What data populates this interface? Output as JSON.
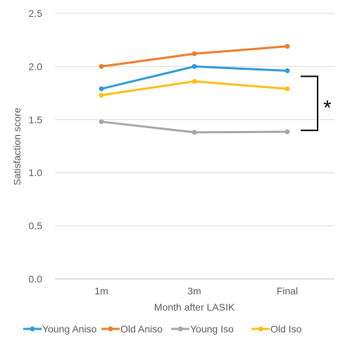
{
  "chart_data": {
    "type": "line",
    "title": "",
    "xlabel": "Month after LASIK",
    "ylabel": "Satisfaction score",
    "categories": [
      "1m",
      "3m",
      "Final"
    ],
    "ylim": [
      0.0,
      2.5
    ],
    "yticks": [
      "0.0",
      "0.5",
      "1.0",
      "1.5",
      "2.0",
      "2.5"
    ],
    "grid": true,
    "legend_position": "bottom",
    "series": [
      {
        "name": "Young Aniso",
        "color": "#2e9bd6",
        "values": [
          1.79,
          2.0,
          1.96
        ]
      },
      {
        "name": "Old Aniso",
        "color": "#f07b2a",
        "values": [
          2.0,
          2.12,
          2.19
        ]
      },
      {
        "name": "Young Iso",
        "color": "#a6a6a6",
        "values": [
          1.48,
          1.38,
          1.385
        ]
      },
      {
        "name": "Old Iso",
        "color": "#fcbf14",
        "values": [
          1.73,
          1.86,
          1.79
        ]
      }
    ],
    "annotation": {
      "text": "*",
      "bracket_from": "Young Aniso",
      "bracket_to": "Young Iso",
      "at": "Final"
    }
  }
}
